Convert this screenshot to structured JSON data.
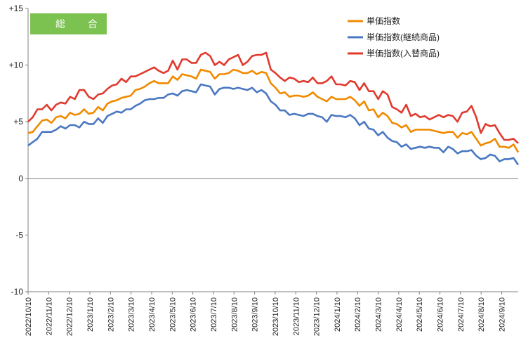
{
  "chart_data": {
    "type": "line",
    "ylim": [
      -10,
      15
    ],
    "yticks": [
      {
        "value": 15,
        "label": "+15"
      },
      {
        "value": 10,
        "label": "+10"
      },
      {
        "value": 5,
        "label": "+5"
      },
      {
        "value": 0,
        "label": "0"
      },
      {
        "value": -5,
        "label": "-5"
      },
      {
        "value": -10,
        "label": "-10"
      }
    ],
    "xtick_labels": [
      "2022/10/10",
      "2022/11/10",
      "2022/12/10",
      "2023/1/10",
      "2023/2/10",
      "2023/3/10",
      "2023/4/10",
      "2023/5/10",
      "2023/6/10",
      "2023/7/10",
      "2023/8/10",
      "2023/9/10",
      "2023/10/10",
      "2023/11/10",
      "2023/12/10",
      "2024/1/10",
      "2024/2/10",
      "2024/3/10",
      "2024/4/10",
      "2024/5/10",
      "2024/6/10",
      "2024/7/10",
      "2024/8/10",
      "2024/9/10"
    ],
    "badge": "総 合",
    "grid": false,
    "legend_position": "top-right",
    "series": [
      {
        "name": "単価指数",
        "color": "#f08a00",
        "values": [
          4.0,
          4.1,
          4.6,
          5.1,
          5.2,
          4.9,
          5.4,
          5.5,
          5.3,
          5.8,
          5.6,
          5.7,
          6.1,
          5.7,
          5.8,
          6.3,
          6.0,
          6.6,
          6.8,
          6.9,
          7.1,
          7.2,
          7.3,
          7.8,
          7.9,
          8.1,
          8.4,
          8.6,
          8.4,
          8.4,
          8.4,
          9.0,
          8.7,
          9.2,
          9.1,
          9.0,
          8.8,
          9.6,
          9.5,
          9.4,
          8.8,
          9.2,
          9.2,
          9.3,
          9.6,
          9.5,
          9.3,
          9.3,
          9.5,
          9.2,
          9.4,
          9.3,
          8.4,
          8.0,
          7.5,
          7.6,
          7.2,
          7.3,
          7.3,
          7.2,
          7.3,
          7.6,
          7.2,
          7.0,
          6.8,
          7.2,
          7.0,
          7.0,
          7.0,
          7.2,
          6.9,
          6.4,
          6.8,
          6.0,
          6.1,
          5.4,
          5.8,
          5.5,
          4.9,
          4.8,
          4.5,
          4.7,
          4.1,
          4.3,
          4.3,
          4.3,
          4.3,
          4.2,
          4.1,
          4.0,
          4.1,
          4.1,
          3.6,
          4.0,
          3.9,
          4.1,
          3.5,
          2.9,
          3.1,
          3.2,
          3.5,
          2.8,
          2.8,
          2.7,
          3.0,
          2.3
        ]
      },
      {
        "name": "単価指数(継続商品)",
        "color": "#4a78c2",
        "values": [
          2.9,
          3.2,
          3.5,
          4.1,
          4.1,
          4.1,
          4.3,
          4.6,
          4.4,
          4.7,
          4.7,
          4.5,
          5.0,
          4.8,
          4.8,
          5.3,
          4.9,
          5.5,
          5.7,
          5.9,
          5.8,
          6.1,
          6.1,
          6.4,
          6.6,
          6.9,
          7.0,
          7.0,
          7.1,
          7.1,
          7.4,
          7.5,
          7.3,
          7.7,
          7.8,
          7.7,
          7.6,
          8.3,
          8.2,
          8.1,
          7.4,
          7.9,
          8.0,
          8.0,
          7.9,
          8.0,
          7.9,
          7.8,
          8.0,
          7.6,
          7.8,
          7.5,
          6.8,
          6.5,
          6.0,
          6.0,
          5.6,
          5.7,
          5.6,
          5.5,
          5.7,
          5.7,
          5.5,
          5.4,
          5.0,
          5.6,
          5.5,
          5.5,
          5.4,
          5.6,
          5.3,
          4.7,
          5.0,
          4.4,
          4.3,
          3.8,
          4.1,
          3.6,
          3.3,
          3.2,
          2.8,
          3.0,
          2.6,
          2.7,
          2.8,
          2.7,
          2.8,
          2.7,
          2.7,
          2.3,
          2.8,
          2.6,
          2.2,
          2.4,
          2.4,
          2.5,
          2.0,
          1.7,
          1.8,
          2.1,
          2.0,
          1.5,
          1.7,
          1.7,
          1.8,
          1.2
        ]
      },
      {
        "name": "単価指数(入替商品)",
        "color": "#e03a2e",
        "values": [
          5.0,
          5.4,
          6.1,
          6.1,
          6.5,
          6.0,
          6.5,
          6.7,
          6.6,
          7.2,
          7.0,
          7.8,
          7.8,
          7.2,
          7.0,
          7.4,
          7.5,
          7.9,
          8.2,
          8.3,
          8.8,
          8.5,
          9.0,
          9.0,
          9.2,
          9.4,
          9.6,
          9.8,
          9.5,
          9.3,
          9.5,
          10.4,
          9.6,
          10.5,
          10.5,
          10.2,
          10.2,
          10.9,
          11.1,
          10.8,
          10.0,
          10.3,
          10.0,
          10.5,
          10.7,
          10.9,
          10.0,
          10.3,
          10.8,
          10.9,
          10.9,
          11.1,
          9.6,
          9.3,
          8.9,
          8.6,
          8.9,
          8.8,
          8.5,
          8.6,
          8.5,
          8.9,
          8.4,
          8.4,
          8.6,
          9.0,
          8.3,
          8.3,
          8.2,
          8.6,
          8.5,
          7.8,
          8.4,
          7.7,
          7.7,
          7.0,
          7.7,
          7.4,
          6.3,
          6.1,
          5.8,
          6.5,
          5.5,
          5.7,
          5.4,
          5.5,
          5.2,
          5.4,
          5.6,
          5.4,
          5.6,
          5.5,
          5.0,
          5.8,
          5.9,
          6.4,
          5.4,
          4.0,
          4.8,
          4.6,
          4.7,
          4.0,
          3.4,
          3.4,
          3.5,
          3.1
        ]
      }
    ]
  }
}
